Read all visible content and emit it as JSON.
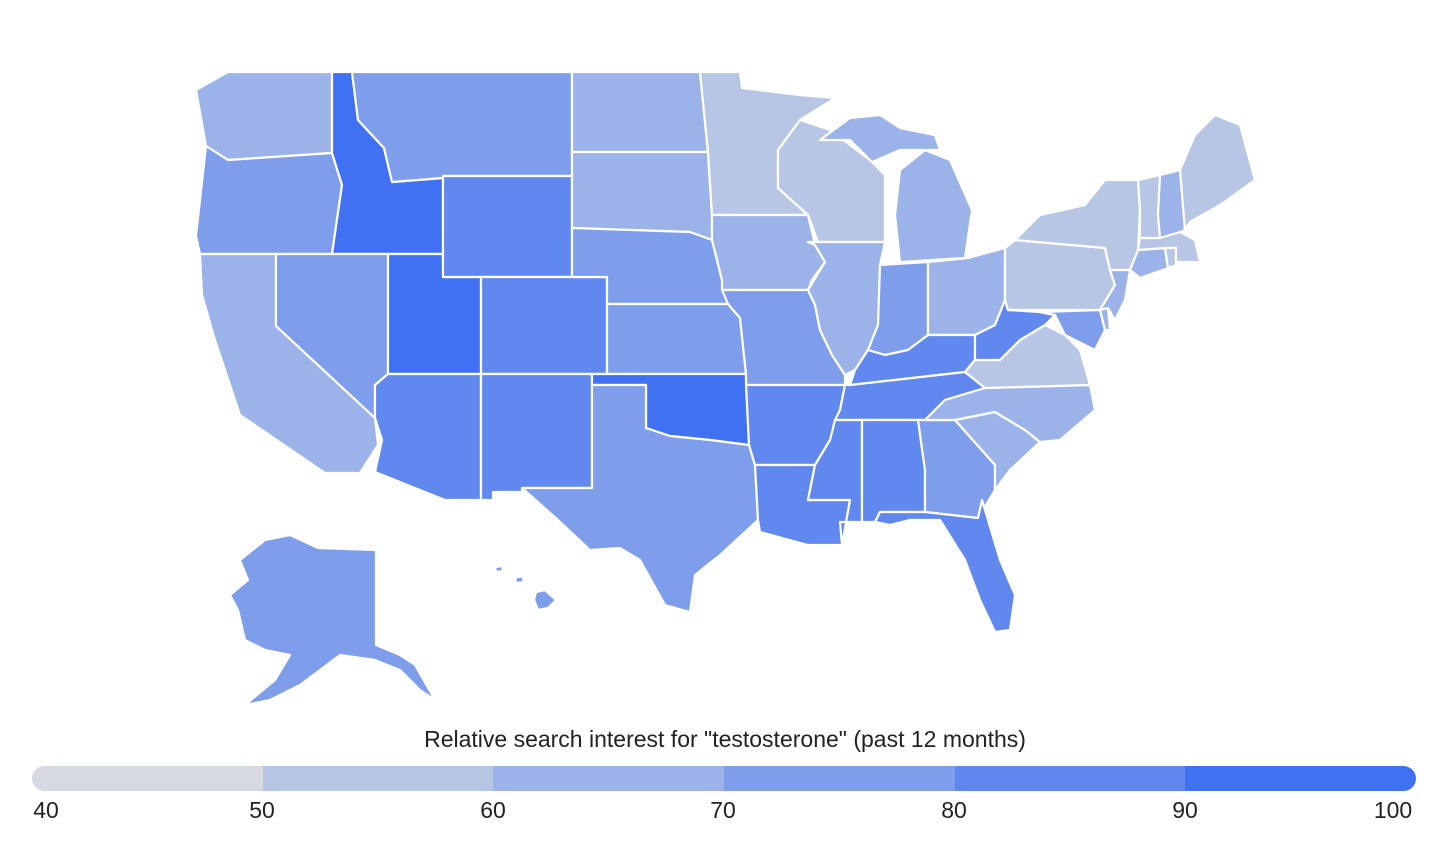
{
  "map": {
    "scale_colors": {
      "40-50": "#d6d9e1",
      "50-60": "#b8c6e6",
      "60-70": "#9cb3e9",
      "70-80": "#7e9deb",
      "80-90": "#6088ee",
      "90-100": "#4071f2"
    },
    "states": [
      {
        "name": "WA",
        "band": "60-70"
      },
      {
        "name": "OR",
        "band": "70-80"
      },
      {
        "name": "CA",
        "band": "60-70"
      },
      {
        "name": "ID",
        "band": "90-100"
      },
      {
        "name": "NV",
        "band": "70-80"
      },
      {
        "name": "UT",
        "band": "90-100"
      },
      {
        "name": "AZ",
        "band": "80-90"
      },
      {
        "name": "MT",
        "band": "70-80"
      },
      {
        "name": "WY",
        "band": "80-90"
      },
      {
        "name": "CO",
        "band": "80-90"
      },
      {
        "name": "NM",
        "band": "80-90"
      },
      {
        "name": "ND",
        "band": "60-70"
      },
      {
        "name": "SD",
        "band": "60-70"
      },
      {
        "name": "NE",
        "band": "70-80"
      },
      {
        "name": "KS",
        "band": "70-80"
      },
      {
        "name": "OK",
        "band": "90-100"
      },
      {
        "name": "TX",
        "band": "70-80"
      },
      {
        "name": "MN",
        "band": "50-60"
      },
      {
        "name": "IA",
        "band": "60-70"
      },
      {
        "name": "MO",
        "band": "70-80"
      },
      {
        "name": "AR",
        "band": "80-90"
      },
      {
        "name": "LA",
        "band": "80-90"
      },
      {
        "name": "WI",
        "band": "50-60"
      },
      {
        "name": "IL",
        "band": "60-70"
      },
      {
        "name": "MI",
        "band": "60-70"
      },
      {
        "name": "IN",
        "band": "70-80"
      },
      {
        "name": "OH",
        "band": "60-70"
      },
      {
        "name": "KY",
        "band": "80-90"
      },
      {
        "name": "TN",
        "band": "80-90"
      },
      {
        "name": "MS",
        "band": "80-90"
      },
      {
        "name": "AL",
        "band": "80-90"
      },
      {
        "name": "GA",
        "band": "70-80"
      },
      {
        "name": "FL",
        "band": "80-90"
      },
      {
        "name": "SC",
        "band": "60-70"
      },
      {
        "name": "NC",
        "band": "60-70"
      },
      {
        "name": "VA",
        "band": "50-60"
      },
      {
        "name": "WV",
        "band": "80-90"
      },
      {
        "name": "PA",
        "band": "50-60"
      },
      {
        "name": "NY",
        "band": "50-60"
      },
      {
        "name": "MD",
        "band": "70-80"
      },
      {
        "name": "DE",
        "band": "60-70"
      },
      {
        "name": "NJ",
        "band": "60-70"
      },
      {
        "name": "CT",
        "band": "60-70"
      },
      {
        "name": "RI",
        "band": "50-60"
      },
      {
        "name": "MA",
        "band": "50-60"
      },
      {
        "name": "VT",
        "band": "50-60"
      },
      {
        "name": "NH",
        "band": "60-70"
      },
      {
        "name": "ME",
        "band": "50-60"
      },
      {
        "name": "AK",
        "band": "70-80"
      },
      {
        "name": "HI",
        "band": "70-80"
      }
    ]
  },
  "legend": {
    "title": "Relative search interest for \"testosterone\" (past 12 months)",
    "ticks": [
      "40",
      "50",
      "60",
      "70",
      "80",
      "90",
      "100"
    ],
    "colors": [
      "#d6d9e1",
      "#b8c6e6",
      "#9cb3e9",
      "#7e9deb",
      "#6088ee",
      "#4071f2"
    ]
  }
}
